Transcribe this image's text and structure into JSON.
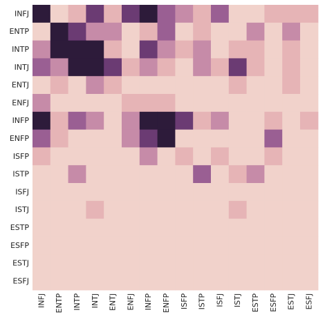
{
  "chart_data": {
    "type": "heatmap",
    "title": "",
    "xlabel": "",
    "ylabel": "",
    "colorbar": false,
    "value_range": [
      0,
      5
    ],
    "colormap": [
      "#f1d2cb",
      "#e6b4b6",
      "#c68ba8",
      "#9a5f93",
      "#6b3b73",
      "#2d1b3a"
    ],
    "x_categories": [
      "INFJ",
      "ENTP",
      "INTP",
      "INTJ",
      "ENTJ",
      "ENFJ",
      "INFP",
      "ENFP",
      "ISFP",
      "ISTP",
      "ISFJ",
      "ISTJ",
      "ESTP",
      "ESFP",
      "ESTJ",
      "ESFJ"
    ],
    "y_categories": [
      "INFJ",
      "ENTP",
      "INTP",
      "INTJ",
      "ENTJ",
      "ENFJ",
      "INFP",
      "ENFP",
      "ISFP",
      "ISTP",
      "ISFJ",
      "ISTJ",
      "ESTP",
      "ESFP",
      "ESTJ",
      "ESFJ"
    ],
    "values": [
      [
        5,
        0,
        1,
        4,
        1,
        4,
        5,
        3,
        2,
        1,
        3,
        0,
        0,
        1,
        1,
        1
      ],
      [
        0,
        5,
        4,
        2,
        2,
        0,
        1,
        3,
        0,
        1,
        0,
        0,
        2,
        0,
        2,
        0
      ],
      [
        2,
        5,
        5,
        5,
        1,
        0,
        4,
        2,
        1,
        2,
        0,
        1,
        1,
        0,
        1,
        0
      ],
      [
        3,
        2,
        5,
        5,
        4,
        1,
        2,
        1,
        0,
        2,
        1,
        4,
        1,
        0,
        1,
        0
      ],
      [
        0,
        1,
        0,
        2,
        1,
        0,
        0,
        0,
        0,
        0,
        0,
        1,
        0,
        0,
        1,
        0
      ],
      [
        2,
        0,
        0,
        0,
        0,
        1,
        1,
        1,
        0,
        0,
        0,
        0,
        0,
        0,
        0,
        0
      ],
      [
        5,
        1,
        3,
        2,
        0,
        2,
        5,
        5,
        4,
        1,
        2,
        0,
        0,
        1,
        0,
        1
      ],
      [
        3,
        1,
        0,
        0,
        0,
        2,
        4,
        5,
        0,
        0,
        0,
        0,
        0,
        3,
        0,
        0
      ],
      [
        1,
        0,
        0,
        0,
        0,
        0,
        2,
        0,
        1,
        0,
        1,
        0,
        0,
        1,
        0,
        0
      ],
      [
        0,
        0,
        2,
        0,
        0,
        0,
        0,
        0,
        0,
        3,
        0,
        1,
        2,
        0,
        0,
        0
      ],
      [
        0,
        0,
        0,
        0,
        0,
        0,
        0,
        0,
        0,
        0,
        0,
        0,
        0,
        0,
        0,
        0
      ],
      [
        0,
        0,
        0,
        1,
        0,
        0,
        0,
        0,
        0,
        0,
        0,
        1,
        0,
        0,
        0,
        0
      ],
      [
        0,
        0,
        0,
        0,
        0,
        0,
        0,
        0,
        0,
        0,
        0,
        0,
        0,
        0,
        0,
        0
      ],
      [
        0,
        0,
        0,
        0,
        0,
        0,
        0,
        0,
        0,
        0,
        0,
        0,
        0,
        0,
        0,
        0
      ],
      [
        0,
        0,
        0,
        0,
        0,
        0,
        0,
        0,
        0,
        0,
        0,
        0,
        0,
        0,
        0,
        0
      ],
      [
        0,
        0,
        0,
        0,
        0,
        0,
        0,
        0,
        0,
        0,
        0,
        0,
        0,
        0,
        0,
        0
      ]
    ]
  }
}
